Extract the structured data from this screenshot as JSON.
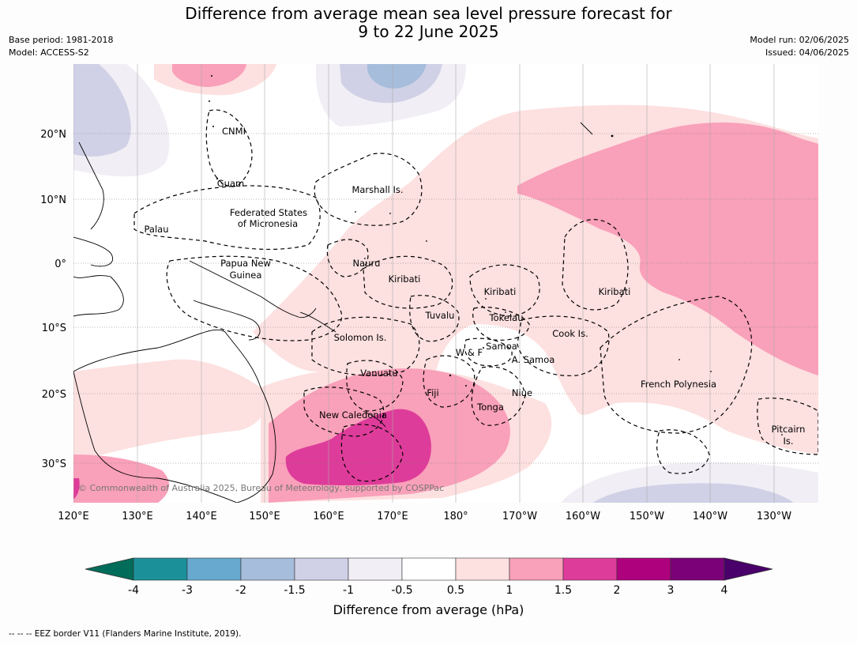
{
  "header": {
    "title_line1": "Difference from average mean sea level pressure forecast for",
    "title_line2": "9 to 22 June 2025",
    "base_period": "Base period: 1981-2018",
    "model": "Model: ACCESS-S2",
    "model_run": "Model run: 02/06/2025",
    "issued": "Issued: 04/06/2025"
  },
  "map": {
    "copyright": "© Commonwealth of Australia 2025, Bureau of Meteorology, supported by COSPPac",
    "lat_ticks": [
      "20°N",
      "10°N",
      "0°",
      "10°S",
      "20°S",
      "30°S"
    ],
    "lon_ticks": [
      "120°E",
      "130°E",
      "140°E",
      "150°E",
      "160°E",
      "170°E",
      "180°",
      "170°W",
      "160°W",
      "150°W",
      "140°W",
      "130°W"
    ],
    "place_labels": [
      "CNMI",
      "Guam",
      "Marshall Is.",
      "Federated States",
      "of Micronesia",
      "Palau",
      "Nauru",
      "Papua New",
      "Guinea",
      "Kiribati",
      "Kiribati",
      "Kiribati",
      "Tuvalu",
      "Tokelau",
      "Solomon Is.",
      "Cook Is.",
      "Samoa",
      "W & F",
      "A. Samoa",
      "Vanuatu",
      "Fiji",
      "Niue",
      "French Polynesia",
      "Tonga",
      "New Caledonia",
      "Pitcairn",
      "Is."
    ],
    "colors": {
      "ocean_neutral": "#ffffff",
      "pos_0_5_1": "#fde0e0",
      "pos_1_1_5": "#f9a0ba",
      "pos_1_5_2": "#de3c9a",
      "neg_0_5_1": "#f1eef5",
      "neg_1_1_5": "#d0d1e6",
      "neg_1_5_2": "#a6bddb"
    }
  },
  "colorbar": {
    "title": "Difference from average (hPa)",
    "tick_labels": [
      "-4",
      "-3",
      "-2",
      "-1.5",
      "-1",
      "-0.5",
      "0.5",
      "1",
      "1.5",
      "2",
      "3",
      "4"
    ],
    "colors": [
      "#016c59",
      "#1c9099",
      "#67a9cf",
      "#a6bddb",
      "#d0d1e6",
      "#f1eef5",
      "#ffffff",
      "#fde0e0",
      "#f9a0ba",
      "#de3c9a",
      "#ae017e",
      "#7a0177",
      "#49006a"
    ]
  },
  "footnote": "--  --  -- EEZ border V11 (Flanders Marine Institute, 2019)."
}
